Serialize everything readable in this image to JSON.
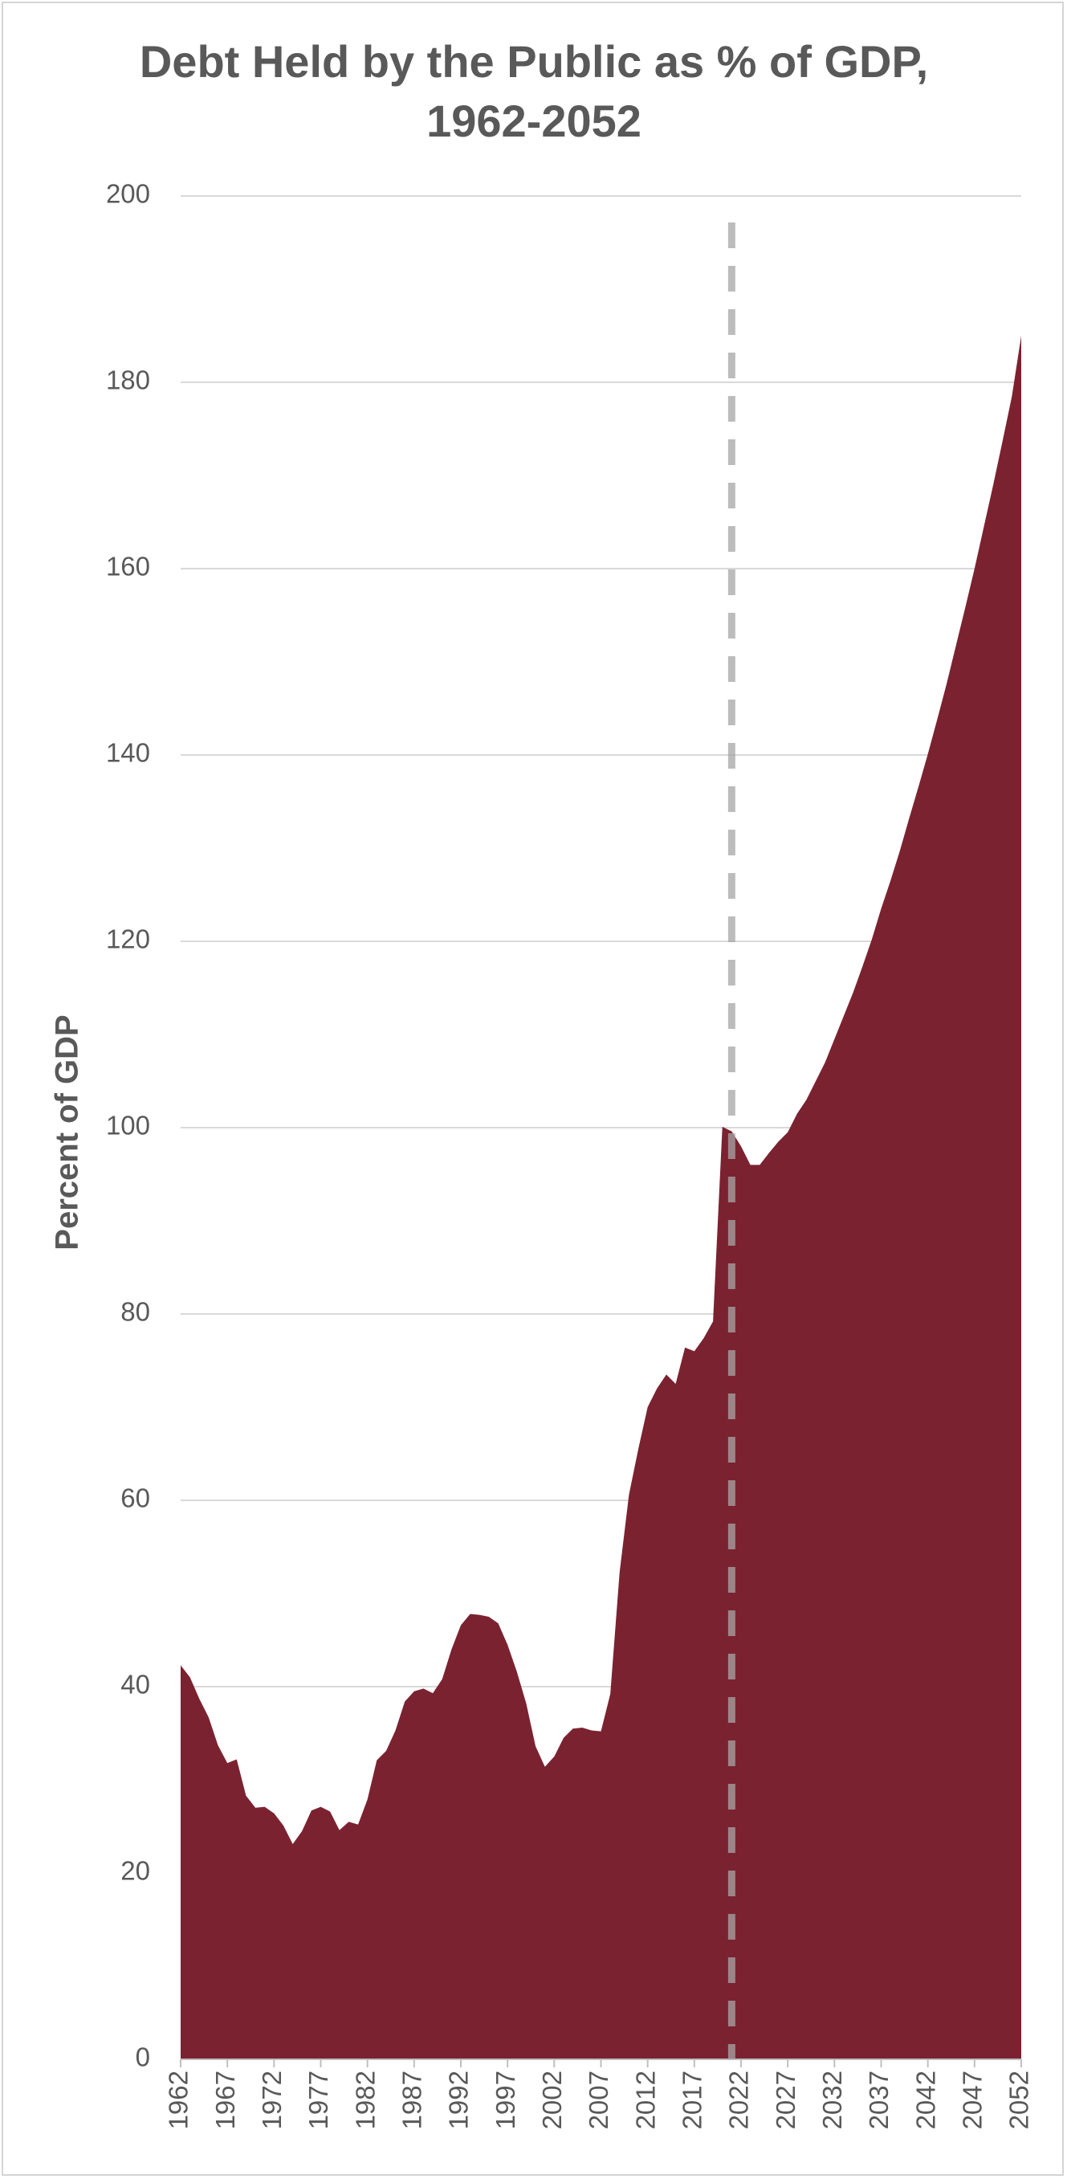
{
  "chart_data": {
    "type": "area",
    "title": "Debt Held by the Public as % of GDP, 1962-2052",
    "y_label": "Percent of GDP",
    "x": [
      1962,
      1963,
      1964,
      1965,
      1966,
      1967,
      1968,
      1969,
      1970,
      1971,
      1972,
      1973,
      1974,
      1975,
      1976,
      1977,
      1978,
      1979,
      1980,
      1981,
      1982,
      1983,
      1984,
      1985,
      1986,
      1987,
      1988,
      1989,
      1990,
      1991,
      1992,
      1993,
      1994,
      1995,
      1996,
      1997,
      1998,
      1999,
      2000,
      2001,
      2002,
      2003,
      2004,
      2005,
      2006,
      2007,
      2008,
      2009,
      2010,
      2011,
      2012,
      2013,
      2014,
      2015,
      2016,
      2017,
      2018,
      2019,
      2020,
      2021,
      2022,
      2023,
      2024,
      2025,
      2026,
      2027,
      2028,
      2029,
      2030,
      2031,
      2032,
      2033,
      2034,
      2035,
      2036,
      2037,
      2038,
      2039,
      2040,
      2041,
      2042,
      2043,
      2044,
      2045,
      2046,
      2047,
      2048,
      2049,
      2050,
      2051,
      2052
    ],
    "values": [
      42.3,
      41.0,
      38.7,
      36.7,
      33.7,
      31.8,
      32.2,
      28.3,
      27.0,
      27.1,
      26.4,
      25.1,
      23.1,
      24.5,
      26.7,
      27.1,
      26.6,
      24.6,
      25.5,
      25.2,
      27.9,
      32.1,
      33.1,
      35.3,
      38.4,
      39.5,
      39.8,
      39.3,
      40.8,
      44.0,
      46.6,
      47.8,
      47.7,
      47.5,
      46.8,
      44.5,
      41.6,
      38.2,
      33.6,
      31.4,
      32.5,
      34.5,
      35.5,
      35.6,
      35.3,
      35.2,
      39.2,
      52.3,
      60.6,
      65.5,
      70.0,
      72.0,
      73.5,
      72.5,
      76.4,
      76.0,
      77.4,
      79.2,
      100.1,
      99.6,
      98.0,
      96.0,
      96.0,
      97.3,
      98.5,
      99.5,
      101.5,
      103.0,
      105.0,
      107.0,
      109.5,
      112.0,
      114.5,
      117.3,
      120.2,
      123.5,
      126.5,
      129.7,
      133.2,
      136.6,
      140.1,
      143.8,
      147.6,
      151.7,
      155.8,
      160.0,
      164.5,
      169.0,
      173.7,
      178.5,
      185.0
    ],
    "color": "#7b2230",
    "xlim": [
      1962,
      2052
    ],
    "xticks": [
      1962,
      1967,
      1972,
      1977,
      1982,
      1987,
      1992,
      1997,
      2002,
      2007,
      2012,
      2017,
      2022,
      2027,
      2032,
      2037,
      2042,
      2047,
      2052
    ],
    "ylim": [
      0,
      200
    ],
    "yticks": [
      0,
      20,
      40,
      60,
      80,
      100,
      120,
      140,
      160,
      180,
      200
    ],
    "grid": true,
    "reference_line_x": 2021,
    "reference_line_color": "#a6a6a6"
  }
}
